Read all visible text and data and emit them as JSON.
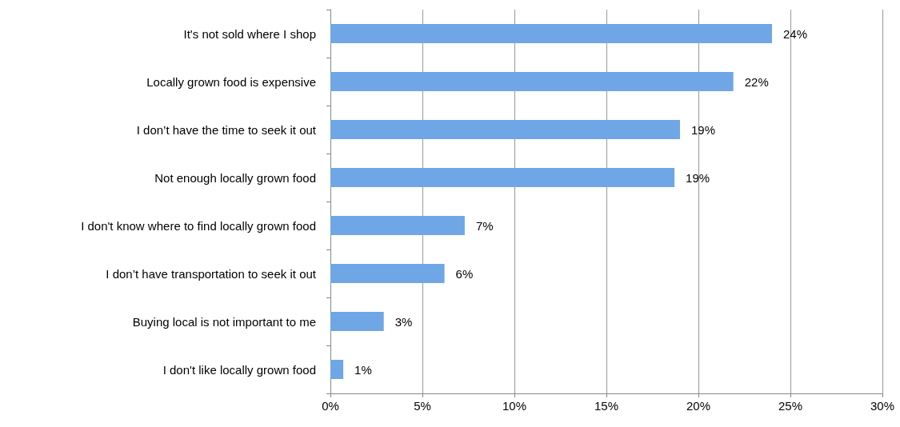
{
  "chart_data": {
    "type": "bar",
    "orientation": "horizontal",
    "categories": [
      "It's not sold where I shop",
      "Locally grown food is expensive",
      "I don’t have the time to seek it out",
      "Not enough locally grown food",
      "I don't know where to find locally grown food",
      "I don’t have transportation to seek it out",
      "Buying local is not important to me",
      "I don't like locally grown food"
    ],
    "values": [
      24.0,
      21.9,
      19.0,
      18.7,
      7.3,
      6.2,
      2.9,
      0.7
    ],
    "value_labels": [
      "24%",
      "22%",
      "19%",
      "19%",
      "7%",
      "6%",
      "3%",
      "1%"
    ],
    "color": "#6fa6e6",
    "xlim": [
      0,
      30
    ],
    "xticks": [
      {
        "value": 0,
        "label": "0%"
      },
      {
        "value": 5,
        "label": "5%"
      },
      {
        "value": 10,
        "label": "10%"
      },
      {
        "value": 15,
        "label": "15%"
      },
      {
        "value": 20,
        "label": "20%"
      },
      {
        "value": 25,
        "label": "25%"
      },
      {
        "value": 30,
        "label": "30%"
      }
    ],
    "grid": "x"
  }
}
